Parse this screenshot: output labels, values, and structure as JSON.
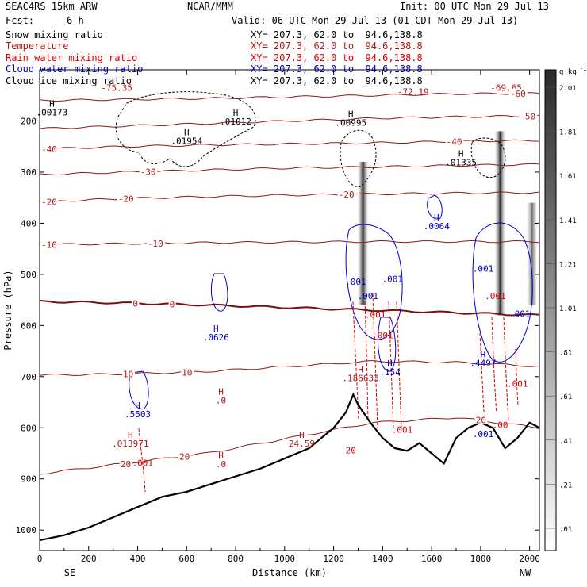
{
  "header": {
    "model": "SEAC4RS 15km ARW",
    "center": "NCAR/MMM",
    "init": "Init: 00 UTC Mon 29 Jul 13",
    "fcst_label": "Fcst:",
    "fcst_value": "6 h",
    "valid": "Valid: 06 UTC Mon 29 Jul 13 (01 CDT Mon 29 Jul 13)"
  },
  "fields": [
    {
      "name": "Snow mixing ratio",
      "xy": "XY= 207.3, 62.0 to  94.6,138.8",
      "color": "#000000"
    },
    {
      "name": "Temperature",
      "xy": "XY= 207.3, 62.0 to  94.6,138.8",
      "color": "#b21818"
    },
    {
      "name": "Rain water mixing ratio",
      "xy": "XY= 207.3, 62.0 to  94.6,138.8",
      "color": "#dd0000"
    },
    {
      "name": "Cloud water mixing ratio",
      "xy": "XY= 207.3, 62.0 to  94.6,138.8",
      "color": "#0000cc"
    },
    {
      "name": "Cloud ice mixing ratio",
      "xy": "XY= 207.3, 62.0 to  94.6,138.8",
      "color": "#000000"
    }
  ],
  "chart_data": {
    "type": "contour cross-section",
    "xlabel": "Distance (km)",
    "ylabel": "Pressure (hPa)",
    "x_end_labels": {
      "left": "SE",
      "right": "NW"
    },
    "xlim": [
      0,
      2040
    ],
    "ylim": [
      1040,
      100
    ],
    "x_ticks": [
      0,
      200,
      400,
      600,
      800,
      1000,
      1200,
      1400,
      1600,
      1800,
      2000
    ],
    "y_ticks": [
      200,
      300,
      400,
      500,
      600,
      700,
      800,
      900,
      1000
    ],
    "colorbar": {
      "unit": "g kg",
      "unit_exp": "-1",
      "ticks": [
        ".01",
        ".21",
        ".41",
        ".61",
        ".81",
        "1.01",
        "1.21",
        "1.41",
        "1.61",
        "1.81",
        "2.01"
      ],
      "color_low": "#ffffff",
      "color_high": "#2a2a2a"
    },
    "temperature_contours": [
      {
        "value": -75,
        "label": "-75.35",
        "label_x": 250,
        "label_p": 135
      },
      {
        "value": -72,
        "label": "-72.19",
        "label_x": 1460,
        "label_p": 143
      },
      {
        "value": -69,
        "label": "-69.65",
        "label_x": 1840,
        "label_p": 135
      },
      {
        "value": -60,
        "p": [
          160,
          158,
          156,
          153,
          150,
          147,
          146
        ],
        "labels": [
          {
            "text": "-60",
            "x": 1920
          }
        ]
      },
      {
        "value": -50,
        "p": [
          215,
          210,
          205,
          200,
          195,
          192,
          190
        ],
        "labels": [
          {
            "text": "-50",
            "x": 1960
          }
        ]
      },
      {
        "value": -40,
        "p": [
          255,
          250,
          247,
          245,
          243,
          240,
          238
        ],
        "labels": [
          {
            "text": "-40",
            "x": 0
          },
          {
            "text": "-40",
            "x": 1660
          }
        ]
      },
      {
        "value": -30,
        "p": [
          305,
          300,
          296,
          292,
          290,
          287,
          285
        ],
        "labels": [
          {
            "text": "-30",
            "x": 410
          }
        ]
      },
      {
        "value": -20,
        "p": [
          358,
          352,
          348,
          345,
          343,
          341,
          340
        ],
        "labels": [
          {
            "text": "-20",
            "x": 0
          },
          {
            "text": "-20",
            "x": 320
          },
          {
            "text": "-20",
            "x": 1220
          }
        ]
      },
      {
        "value": -10,
        "p": [
          442,
          440,
          438,
          437,
          436,
          436,
          436
        ],
        "labels": [
          {
            "text": "-10",
            "x": 0
          },
          {
            "text": "-10",
            "x": 440
          }
        ]
      },
      {
        "value": 0,
        "p": [
          553,
          556,
          560,
          565,
          570,
          575,
          580
        ],
        "labels": [
          {
            "text": "0",
            "x": 380
          },
          {
            "text": "0",
            "x": 530
          }
        ]
      },
      {
        "value": 10,
        "p": [
          697,
          695,
          690,
          680,
          670,
          672,
          680
        ],
        "labels": [
          {
            "text": "10",
            "x": 340
          },
          {
            "text": "10",
            "x": 580
          }
        ]
      },
      {
        "value": 20,
        "p": [
          890,
          870,
          850,
          820,
          790,
          780,
          800
        ],
        "labels": [
          {
            "text": "20",
            "x": 330
          },
          {
            "text": "20",
            "x": 570
          },
          {
            "text": "20",
            "x": 1780
          }
        ]
      }
    ],
    "terrain": {
      "x": [
        0,
        100,
        200,
        300,
        400,
        500,
        600,
        700,
        800,
        900,
        1000,
        1100,
        1150,
        1200,
        1250,
        1280,
        1300,
        1350,
        1400,
        1450,
        1500,
        1550,
        1600,
        1650,
        1700,
        1750,
        1800,
        1850,
        1900,
        1950,
        2000,
        2040
      ],
      "p": [
        1020,
        1010,
        995,
        975,
        955,
        935,
        925,
        910,
        895,
        880,
        860,
        840,
        820,
        800,
        770,
        735,
        755,
        790,
        820,
        840,
        845,
        830,
        850,
        870,
        820,
        800,
        790,
        800,
        840,
        820,
        790,
        800
      ]
    },
    "max_labels": [
      {
        "text": "H",
        "sub": ".00173",
        "x": 50,
        "p": 172
      },
      {
        "text": "H",
        "sub": ".01954",
        "x": 600,
        "p": 228
      },
      {
        "text": "H",
        "sub": ".01012",
        "x": 800,
        "p": 190
      },
      {
        "text": "H",
        "sub": ".00995",
        "x": 1270,
        "p": 192
      },
      {
        "text": "H",
        "sub": ".01335",
        "x": 1720,
        "p": 270
      },
      {
        "text": "H",
        "sub": ".0064",
        "x": 1620,
        "p": 395
      },
      {
        "text": "H",
        "sub": ".0626",
        "x": 720,
        "p": 612
      },
      {
        "text": "H",
        "sub": ".5503",
        "x": 400,
        "p": 762
      },
      {
        "text": "H",
        "sub": ".013971",
        "x": 370,
        "p": 820
      },
      {
        "text": "H",
        "sub": ".0",
        "x": 740,
        "p": 735
      },
      {
        "text": "H",
        "sub": ".0",
        "x": 740,
        "p": 860
      },
      {
        "text": "H",
        "sub": "24.59",
        "x": 1070,
        "p": 820
      },
      {
        "text": "H",
        "sub": ".186633",
        "x": 1310,
        "p": 692
      },
      {
        "text": "H",
        "sub": ".154",
        "x": 1430,
        "p": 680
      },
      {
        "text": "H",
        "sub": ".4497",
        "x": 1810,
        "p": 662
      }
    ],
    "small_labels": [
      {
        "text": ".001",
        "x": 1290,
        "p": 520,
        "color": "#0000cc"
      },
      {
        "text": ".001",
        "x": 1340,
        "p": 548,
        "color": "#0000cc"
      },
      {
        "text": ".001",
        "x": 1400,
        "p": 625,
        "color": "#dd0000"
      },
      {
        "text": ".001",
        "x": 1370,
        "p": 585,
        "color": "#dd0000"
      },
      {
        "text": ".001",
        "x": 1440,
        "p": 515,
        "color": "#0000cc"
      },
      {
        "text": ".001",
        "x": 1480,
        "p": 810,
        "color": "#dd0000"
      },
      {
        "text": ".001",
        "x": 1810,
        "p": 495,
        "color": "#0000cc"
      },
      {
        "text": ".001",
        "x": 1860,
        "p": 548,
        "color": "#dd0000"
      },
      {
        "text": ".001",
        "x": 1960,
        "p": 583,
        "color": "#0000cc"
      },
      {
        "text": ".001",
        "x": 1950,
        "p": 720,
        "color": "#dd0000"
      },
      {
        "text": ".001",
        "x": 1810,
        "p": 818,
        "color": "#0000cc"
      },
      {
        "text": ".001",
        "x": 420,
        "p": 875,
        "color": "#dd0000"
      },
      {
        "text": "20",
        "x": 1270,
        "p": 850,
        "color": "#dd0000"
      },
      {
        "text": ".00",
        "x": 1880,
        "p": 800,
        "color": "#dd0000"
      }
    ],
    "shaded_columns": [
      {
        "x": 1320,
        "p_top": 280,
        "p_bottom": 560,
        "max": 2.0
      },
      {
        "x": 1880,
        "p_top": 220,
        "p_bottom": 580,
        "max": 2.0
      },
      {
        "x": 2010,
        "p_top": 360,
        "p_bottom": 560,
        "max": 1.4
      }
    ]
  }
}
